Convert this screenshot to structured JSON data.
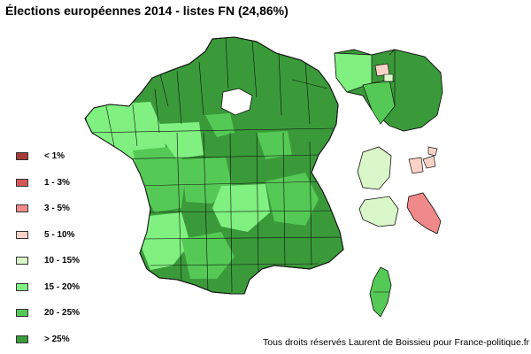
{
  "title": "Élections européennes 2014 - listes FN (24,86%)",
  "legend": [
    {
      "label": "< 1%",
      "color": "#a83a3a"
    },
    {
      "label": "1 - 3%",
      "color": "#d65757"
    },
    {
      "label": "3 - 5%",
      "color": "#f08a8a"
    },
    {
      "label": "5 - 10%",
      "color": "#fbd3c6"
    },
    {
      "label": "10 - 15%",
      "color": "#d9f7c8"
    },
    {
      "label": "15 - 20%",
      "color": "#80f080"
    },
    {
      "label": "20 - 25%",
      "color": "#55c955"
    },
    {
      "label": "> 25%",
      "color": "#3a9a3a"
    }
  ],
  "credit": "Tous droits réservés Laurent de Boissieu pour France-politique.fr"
}
